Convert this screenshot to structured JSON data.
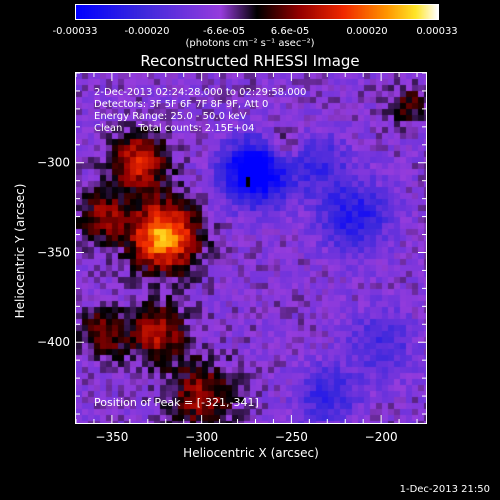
{
  "colorbar": {
    "ticks": [
      "-0.00033",
      "-0.00020",
      "-6.6e-05",
      "6.6e-05",
      "0.00020",
      "0.00033"
    ],
    "units": "(photons cm⁻² s⁻¹ asec⁻²)",
    "range": [
      -0.00033,
      0.00033
    ]
  },
  "chart_data": {
    "type": "heatmap",
    "title": "Reconstructed RHESSI Image",
    "xlabel": "Heliocentric X (arcsec)",
    "ylabel": "Heliocentric Y (arcsec)",
    "xlim": [
      -370,
      -175
    ],
    "ylim": [
      -445,
      -250
    ],
    "x_ticks": [
      -350,
      -300,
      -250,
      -200
    ],
    "y_ticks": [
      -300,
      -350,
      -400
    ],
    "colormap": "rainbow-like: blue → purple → red → orange → yellow → white",
    "sources": [
      {
        "x": -321,
        "y": -341,
        "sigma": 13,
        "amp": 0.00033
      },
      {
        "x": -335,
        "y": -300,
        "sigma": 11,
        "amp": 0.00022
      },
      {
        "x": -355,
        "y": -330,
        "sigma": 9,
        "amp": 0.00016
      },
      {
        "x": -325,
        "y": -395,
        "sigma": 11,
        "amp": 0.00018
      },
      {
        "x": -355,
        "y": -395,
        "sigma": 9,
        "amp": 0.00015
      },
      {
        "x": -300,
        "y": -430,
        "sigma": 13,
        "amp": 0.00016
      },
      {
        "x": -255,
        "y": -290,
        "sigma": 8,
        "amp": 0.00013
      },
      {
        "x": -185,
        "y": -268,
        "sigma": 7,
        "amp": 0.00012
      },
      {
        "x": -270,
        "y": -305,
        "sigma": 13,
        "amp": -0.00033
      },
      {
        "x": -215,
        "y": -330,
        "sigma": 14,
        "amp": -0.00018
      },
      {
        "x": -235,
        "y": -300,
        "sigma": 12,
        "amp": -0.00012
      },
      {
        "x": -230,
        "y": -430,
        "sigma": 12,
        "amp": -0.00015
      },
      {
        "x": -200,
        "y": -400,
        "sigma": 13,
        "amp": -0.00012
      }
    ],
    "peak": {
      "x": -321,
      "y": -341
    }
  },
  "annotations": {
    "time": "2-Dec-2013 02:24:28.000 to 02:29:58.000",
    "detectors": "Detectors: 3F 5F 6F 7F 8F 9F, Att 0",
    "energy": "Energy Range: 25.0 - 50.0 keV",
    "clean": "Clean     Total counts: 2.15E+04",
    "peak": "Position of Peak = [-321,-341]"
  },
  "footer": {
    "date": "1-Dec-2013 21:50"
  }
}
